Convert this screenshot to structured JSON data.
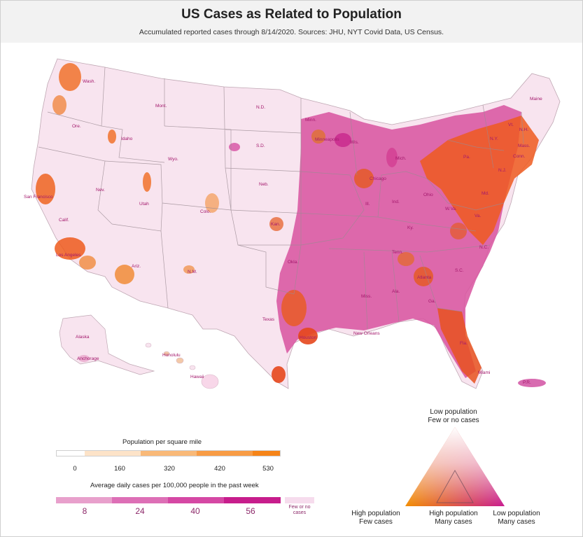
{
  "header": {
    "title": "US Cases as Related to Population",
    "subtitle": "Accumulated reported cases through 8/14/2020. Sources: JHU, NYT Covid Data, US Census."
  },
  "map_labels": {
    "wash": "Wash.",
    "mont": "Mont.",
    "ore": "Ore.",
    "idaho": "Idaho",
    "wyo": "Wyo.",
    "nd": "N.D.",
    "sd": "S.D.",
    "minn": "Minn.",
    "minneapolis": "Minneapolis",
    "wis": "Wis.",
    "mich": "Mich.",
    "neb": "Neb.",
    "nev": "Nev.",
    "utah": "Utah",
    "colo": "Colo.",
    "san_francisco": "San Francisco",
    "calif": "Calif.",
    "los_angeles": "Los Angeles",
    "ariz": "Ariz.",
    "nm": "N.M.",
    "kan": "Kan.",
    "okla": "Okla.",
    "texas": "Texas",
    "houston": "Houston",
    "new_orleans": "New Orleans",
    "chicago": "Chicago",
    "ill": "Ill.",
    "ind": "Ind.",
    "ohio": "Ohio",
    "ky": "Ky.",
    "tenn": "Tenn.",
    "miss": "Miss.",
    "ala": "Ala.",
    "atlanta": "Atlanta",
    "ga": "Ga.",
    "sc": "S.C.",
    "nc": "N.C.",
    "va": "Va.",
    "wva": "W.Va.",
    "md": "Md.",
    "nj": "N.J.",
    "ny": "N.Y.",
    "pa": "Pa.",
    "conn": "Conn.",
    "mass": "Mass.",
    "vt": "Vt.",
    "nh": "N.H.",
    "maine": "Maine",
    "fla": "Fla.",
    "miami": "Miami",
    "alaska": "Alaska",
    "anchorage": "Anchorage",
    "honolulu": "Honolulu",
    "hawaii": "Hawaii",
    "pr": "P.R."
  },
  "legend": {
    "population": {
      "title": "Population per square mile",
      "ticks": [
        "0",
        "160",
        "320",
        "420",
        "530"
      ],
      "colors": [
        "#ffffff",
        "#fde3c8",
        "#f9b978",
        "#f89c45",
        "#f68418"
      ]
    },
    "cases": {
      "title": "Average daily cases per 100,000 people in the past week",
      "ticks": [
        "8",
        "24",
        "40",
        "56"
      ],
      "colors": [
        "#e8a0cc",
        "#dd6fb6",
        "#d548a4",
        "#cf2e98",
        "#c71d8c"
      ],
      "few_label": "Few or no cases",
      "few_color": "#f6dced"
    },
    "triangle": {
      "top_label_1": "Low population",
      "top_label_2": "Few or no cases",
      "left_label_1": "High population",
      "left_label_2": "Few cases",
      "center_label_1": "High population",
      "center_label_2": "Many cases",
      "right_label_1": "Low population",
      "right_label_2": "Many cases",
      "top_color": "#ffffff",
      "left_color": "#f28c00",
      "right_color": "#c81b8e"
    }
  },
  "colors": {
    "base_pink": "#f8e4ef",
    "orange": "#f26a1c",
    "magenta": "#d23c98",
    "state_border": "#9a8a92"
  }
}
